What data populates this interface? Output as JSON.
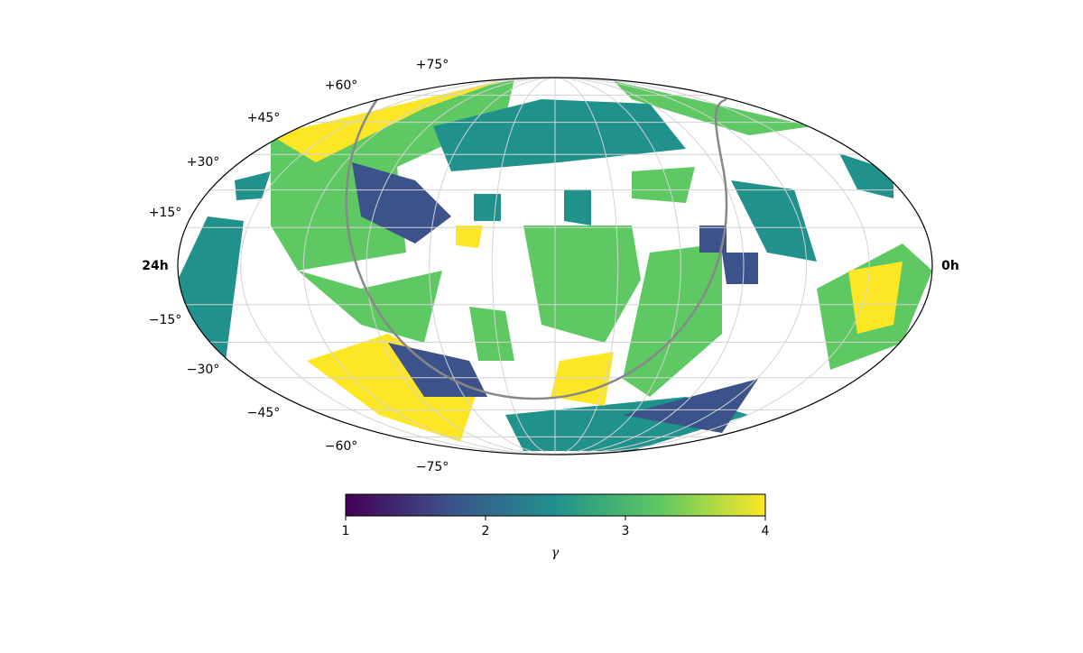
{
  "map": {
    "lat_labels": [
      {
        "value": 75,
        "label": "+75°"
      },
      {
        "value": 60,
        "label": "+60°"
      },
      {
        "value": 45,
        "label": "+45°"
      },
      {
        "value": 30,
        "label": "+30°"
      },
      {
        "value": 15,
        "label": "+15°"
      },
      {
        "value": -15,
        "label": "−15°"
      },
      {
        "value": -30,
        "label": "−30°"
      },
      {
        "value": -45,
        "label": "−45°"
      },
      {
        "value": -60,
        "label": "−60°"
      },
      {
        "value": -75,
        "label": "−75°"
      }
    ],
    "left_label": "24h",
    "right_label": "0h"
  },
  "colorbar": {
    "label": "γ",
    "range": [
      1,
      4
    ],
    "ticks": [
      1,
      2,
      3,
      4
    ],
    "colormap": [
      "#440154",
      "#3b528b",
      "#21918c",
      "#5ec962",
      "#fde725"
    ]
  }
}
